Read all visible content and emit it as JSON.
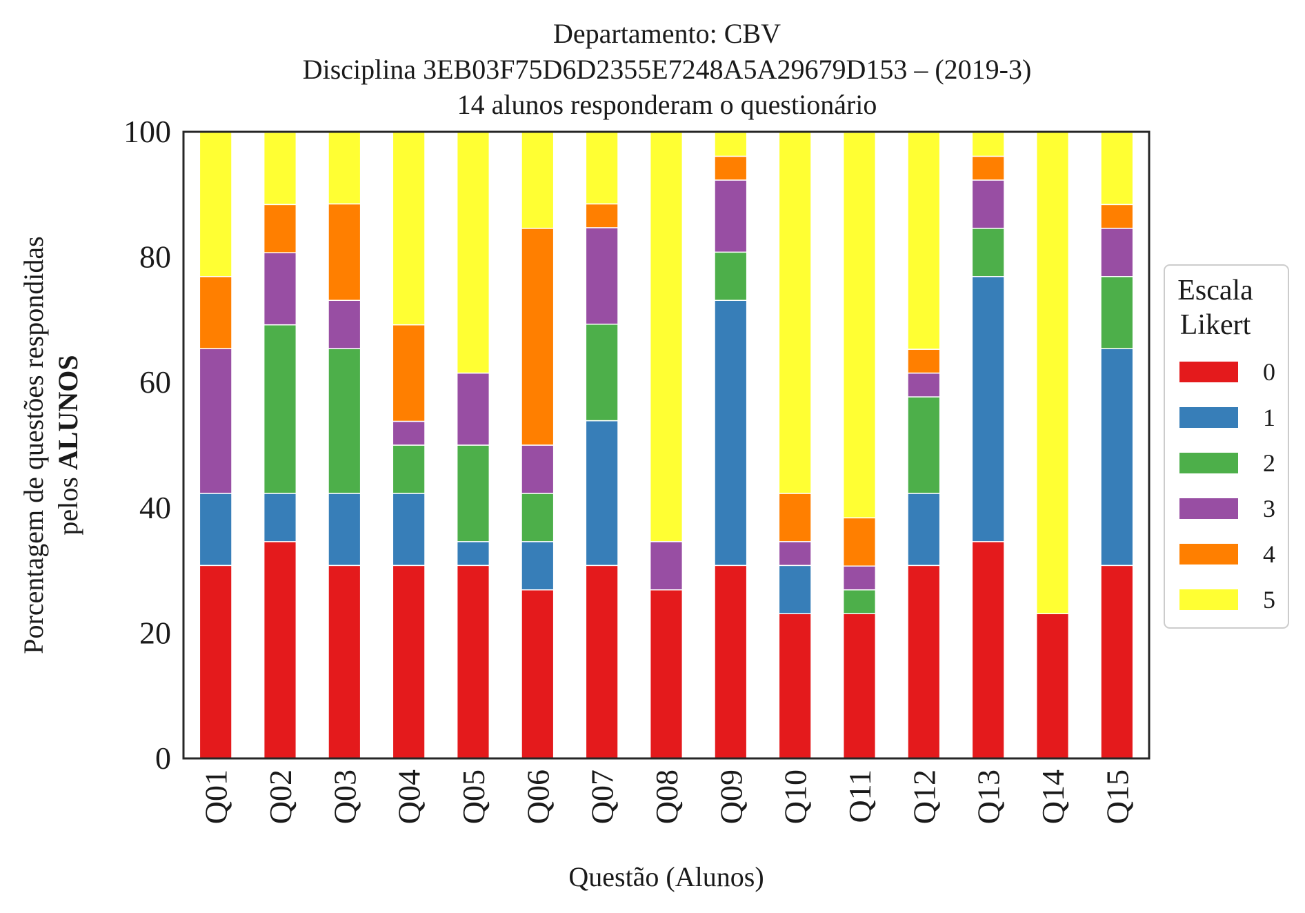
{
  "chart_data": {
    "type": "bar",
    "stacked": true,
    "title": [
      "Departamento: CBV",
      "Disciplina 3EB03F75D6D2355E7248A5A29679D153 – (2019-3)",
      "14 alunos responderam o questionário"
    ],
    "xlabel": "Questão (Alunos)",
    "ylabel_line1": "Porcentagem de questões respondidas",
    "ylabel_line2_prefix": "pelos ",
    "ylabel_line2_bold": "ALUNOS",
    "ylim": [
      0,
      100
    ],
    "yticks": [
      0,
      20,
      40,
      60,
      80,
      100
    ],
    "grid": false,
    "legend_position": "right",
    "legend_title": [
      "Escala",
      "Likert"
    ],
    "categories": [
      "Q01",
      "Q02",
      "Q03",
      "Q04",
      "Q05",
      "Q06",
      "Q07",
      "Q08",
      "Q09",
      "Q10",
      "Q11",
      "Q12",
      "Q13",
      "Q14",
      "Q15"
    ],
    "series": [
      {
        "name": "0",
        "color": "#e41a1c",
        "values": [
          30.8,
          34.6,
          30.8,
          30.8,
          30.8,
          26.9,
          30.8,
          26.9,
          30.8,
          23.1,
          23.1,
          30.8,
          34.6,
          23.1,
          30.8
        ]
      },
      {
        "name": "1",
        "color": "#377eb8",
        "values": [
          11.5,
          7.7,
          11.5,
          11.5,
          3.8,
          7.7,
          23.1,
          0,
          42.3,
          7.7,
          0,
          11.5,
          42.3,
          0,
          34.6
        ]
      },
      {
        "name": "2",
        "color": "#4daf4a",
        "values": [
          0,
          26.9,
          23.1,
          7.7,
          15.4,
          7.7,
          15.4,
          0,
          7.7,
          0,
          3.8,
          15.4,
          7.7,
          0,
          11.5
        ]
      },
      {
        "name": "3",
        "color": "#984ea3",
        "values": [
          23.1,
          11.5,
          7.7,
          3.8,
          11.5,
          7.7,
          15.4,
          7.7,
          11.5,
          3.8,
          3.8,
          3.8,
          7.7,
          0,
          7.7
        ]
      },
      {
        "name": "4",
        "color": "#ff7f00",
        "values": [
          11.5,
          7.7,
          15.4,
          15.4,
          0,
          34.6,
          3.8,
          0,
          3.8,
          7.7,
          7.7,
          3.8,
          3.8,
          0,
          3.8
        ]
      },
      {
        "name": "5",
        "color": "#ffff33",
        "values": [
          23.1,
          11.5,
          11.5,
          30.8,
          38.5,
          15.4,
          11.5,
          65.4,
          3.8,
          57.7,
          61.5,
          34.6,
          3.8,
          76.9,
          11.5
        ]
      }
    ]
  }
}
